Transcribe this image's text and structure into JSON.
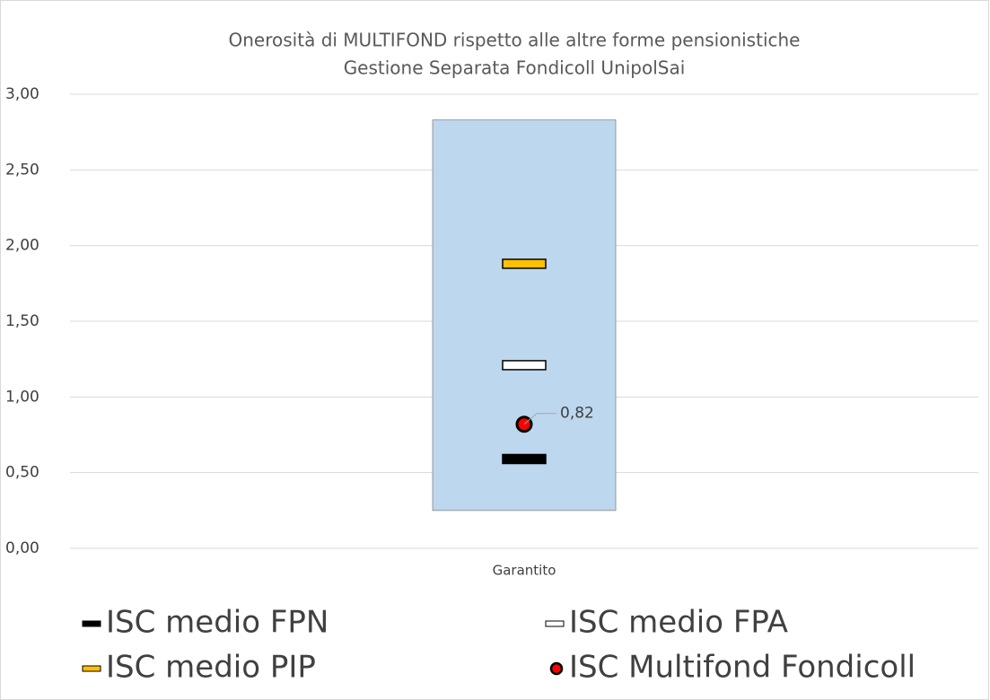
{
  "chart_data": {
    "type": "range",
    "title": [
      "Onerosità di MULTIFOND rispetto alle altre forme pensionistiche",
      "Gestione Separata Fondicoll UnipolSai"
    ],
    "categories": [
      "Garantito"
    ],
    "range": {
      "low": 0.25,
      "high": 2.83,
      "color": "#bdd7ee"
    },
    "series": [
      {
        "name": "ISC medio FPN",
        "marker": "dash",
        "color": "#000000",
        "values": [
          0.59
        ]
      },
      {
        "name": "ISC medio FPA",
        "marker": "dash",
        "color": "#ffffff",
        "values": [
          1.21
        ]
      },
      {
        "name": "ISC medio PIP",
        "marker": "dash",
        "color": "#ffc000",
        "values": [
          1.88
        ]
      },
      {
        "name": "ISC Multifond Fondicoll",
        "marker": "circle",
        "color": "#ff0000",
        "values": [
          0.82
        ],
        "value_labels": [
          "0,82"
        ]
      }
    ],
    "ylim": [
      0,
      3
    ],
    "yticks": [
      {
        "value": 0,
        "label": "0,00"
      },
      {
        "value": 0.5,
        "label": "0,50"
      },
      {
        "value": 1,
        "label": "1,00"
      },
      {
        "value": 1.5,
        "label": "1,50"
      },
      {
        "value": 2,
        "label": "2,00"
      },
      {
        "value": 2.5,
        "label": "2,50"
      },
      {
        "value": 3,
        "label": "3,00"
      }
    ],
    "grid": true
  }
}
